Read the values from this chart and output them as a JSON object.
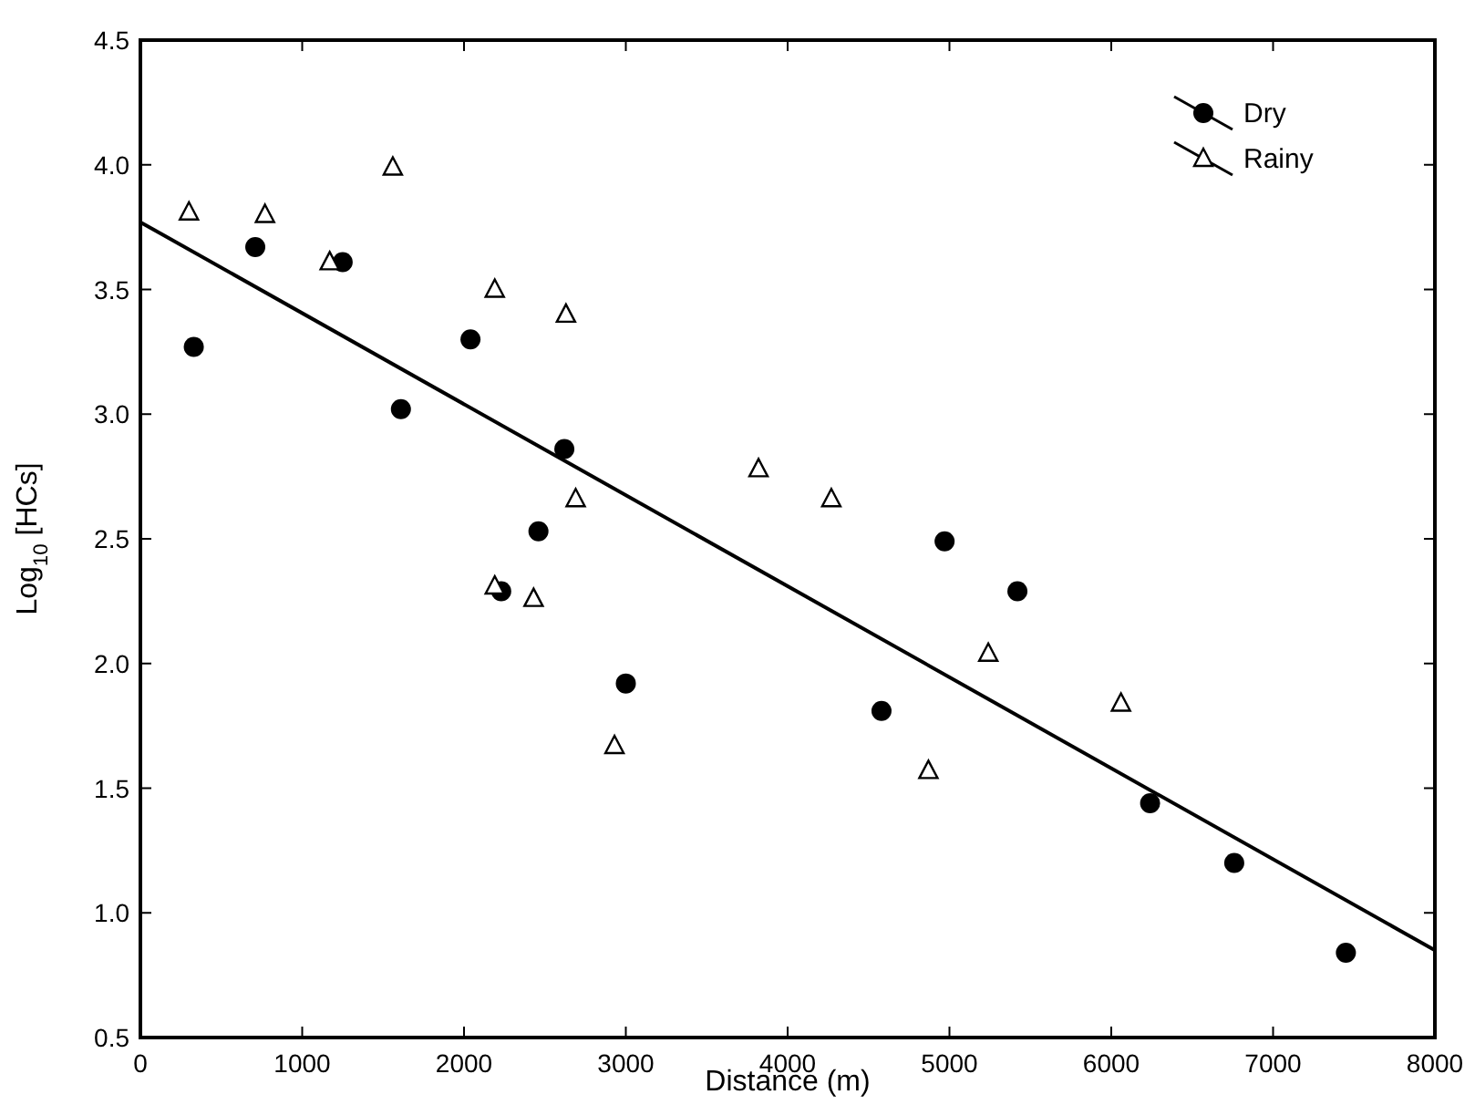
{
  "chart_data": {
    "type": "scatter",
    "xlabel": "Distance (m)",
    "ylabel": "Log$_{10}$ [HCs]",
    "xlim": [
      0,
      8000
    ],
    "xticks": [
      0,
      1000,
      2000,
      3000,
      4000,
      5000,
      6000,
      7000,
      8000
    ],
    "ylim": [
      0.5,
      4.5
    ],
    "yticks": [
      0.5,
      {
        "value": 1,
        "label": "1.0"
      },
      1.5,
      {
        "value": 2,
        "label": "2.0"
      },
      2.5,
      {
        "value": 3,
        "label": "3.0"
      },
      3.5,
      {
        "value": 4,
        "label": "4.0"
      },
      4.5
    ],
    "grid": false,
    "legend": "top right",
    "series": [
      {
        "name": "Dry",
        "color": "#000000",
        "marker": "circle",
        "x": [
          330,
          710,
          1250,
          1610,
          2040,
          2230,
          2460,
          2620,
          3000,
          4580,
          4970,
          5420,
          6240,
          6760,
          7450
        ],
        "values": [
          3.27,
          3.67,
          3.61,
          3.02,
          3.3,
          2.29,
          2.53,
          2.86,
          1.92,
          1.81,
          2.49,
          2.29,
          1.44,
          1.2,
          0.84
        ]
      },
      {
        "name": "Rainy",
        "color": "#000000",
        "marker": "triangle",
        "x": [
          300,
          770,
          1170,
          1560,
          2190,
          2630,
          2690,
          2190,
          2430,
          2930,
          3820,
          4270,
          4870,
          5240,
          6060
        ],
        "values": [
          3.81,
          3.8,
          3.61,
          3.99,
          3.5,
          3.4,
          2.66,
          2.31,
          2.26,
          1.67,
          2.78,
          2.66,
          1.57,
          2.04,
          1.84
        ]
      },
      {
        "type": "line",
        "color": "#000000",
        "line_style": "solid",
        "x": [
          0,
          8000
        ],
        "values": [
          3.77,
          0.85
        ]
      }
    ]
  }
}
